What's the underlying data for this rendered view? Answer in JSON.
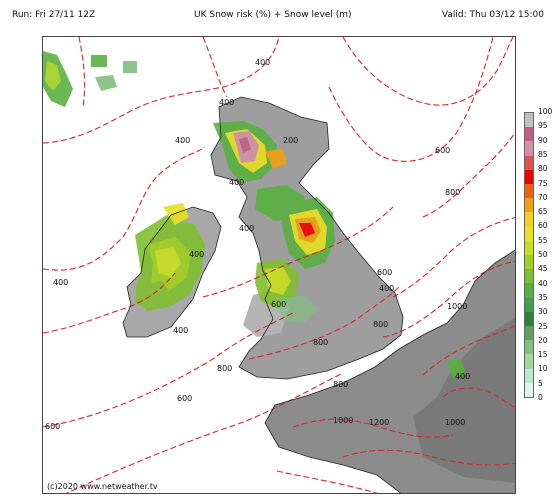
{
  "header": {
    "run": "Run: Fri 27/11 12Z",
    "title": "UK Snow risk (%) + Snow level (m)",
    "valid": "Valid: Thu 03/12 15:00"
  },
  "map": {
    "copyright": "(c)2020 www.netweather.tv",
    "contour_labels": [
      "400",
      "400",
      "400",
      "200",
      "400",
      "400",
      "400",
      "400",
      "400",
      "600",
      "800",
      "600",
      "400",
      "600",
      "800",
      "1000",
      "800",
      "800",
      "800",
      "600",
      "600",
      "1000",
      "1200",
      "1000",
      "400"
    ]
  },
  "legend": {
    "ticks": [
      "100",
      "95",
      "90",
      "85",
      "80",
      "75",
      "70",
      "65",
      "60",
      "55",
      "50",
      "45",
      "40",
      "35",
      "30",
      "25",
      "20",
      "15",
      "10",
      "5",
      "0"
    ],
    "colors": [
      "#c0c0c0",
      "#c06080",
      "#d490a8",
      "#e05050",
      "#f00000",
      "#f06010",
      "#f0a010",
      "#f0d020",
      "#e8e020",
      "#c8e020",
      "#a0d020",
      "#80c030",
      "#58b040",
      "#40a050",
      "#308040",
      "#60a060",
      "#80c080",
      "#a0d8a0",
      "#c0e8d0",
      "#e0f4f0"
    ]
  }
}
